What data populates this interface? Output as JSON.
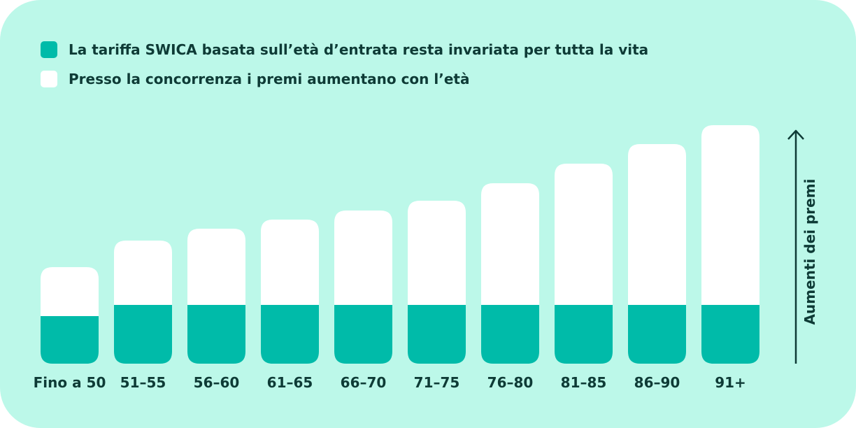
{
  "colors": {
    "background": "#bcf8e9",
    "swica": "#00bba9",
    "competition": "#ffffff",
    "text": "#0e3b36"
  },
  "legend": [
    {
      "label": "La tariffa SWICA basata sull’età d’entrata resta invariata per tutta la vita",
      "color": "#00bba9"
    },
    {
      "label": "Presso la concorrenza i premi aumentano con l’età",
      "color": "#ffffff"
    }
  ],
  "chart_data": {
    "type": "bar",
    "stacked": true,
    "categories": [
      "Fino a 50",
      "51–55",
      "56–60",
      "61–65",
      "66–70",
      "71–75",
      "76–80",
      "81–85",
      "86–90",
      "91+"
    ],
    "series": [
      {
        "name": "La tariffa SWICA basata sull’età d’entrata resta invariata per tutta la vita",
        "color": "#00bba9",
        "values": [
          68,
          84,
          84,
          84,
          84,
          84,
          84,
          84,
          84,
          84
        ]
      },
      {
        "name": "Presso la concorrenza i premi aumentano con l’età",
        "color": "#ffffff",
        "values": [
          70,
          92,
          109,
          122,
          135,
          149,
          174,
          202,
          230,
          257
        ]
      }
    ],
    "ylabel": "Aumenti dei premi",
    "y_axis_ticks": false,
    "grid": false,
    "legend_position": "top-left"
  }
}
